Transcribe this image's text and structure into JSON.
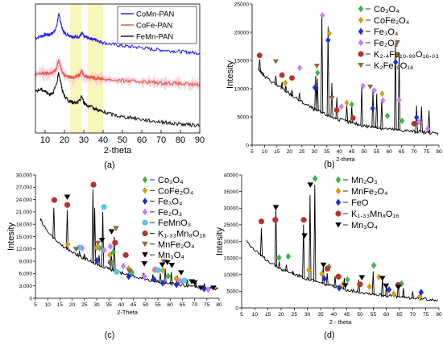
{
  "figure": {
    "panel_labels": [
      "(a)",
      "(b)",
      "(c)",
      "(d)"
    ]
  },
  "chart_data": [
    {
      "type": "line",
      "panel": "(a)",
      "xlabel": "2-theta",
      "ylabel": "",
      "xlim": [
        5,
        90
      ],
      "xticks": [
        10,
        20,
        30,
        40,
        50,
        60,
        70,
        80,
        90
      ],
      "grid": false,
      "legend_position": "top-right",
      "highlight_bands": [
        [
          23,
          29
        ],
        [
          32,
          40
        ]
      ],
      "series": [
        {
          "name": "CoMn-PAN",
          "color": "#1a1aff",
          "x": [
            5,
            8,
            10,
            12,
            14,
            16,
            17,
            18,
            19,
            20,
            22,
            24,
            26,
            28,
            29,
            30,
            32,
            34,
            36,
            38,
            40,
            45,
            50,
            55,
            60,
            65,
            70,
            75,
            80,
            85,
            90
          ],
          "y": [
            6.9,
            7.0,
            7.1,
            7.1,
            7.2,
            7.6,
            8.4,
            7.9,
            7.4,
            7.2,
            7.1,
            7.0,
            6.95,
            7.0,
            7.2,
            7.0,
            6.9,
            6.85,
            6.8,
            6.7,
            6.6,
            6.5,
            6.4,
            6.35,
            6.3,
            6.2,
            6.15,
            6.1,
            6.05,
            6.0,
            5.95
          ]
        },
        {
          "name": "CoFe-PAN",
          "color": "#e8543c",
          "x": [
            5,
            8,
            10,
            12,
            14,
            16,
            17,
            18,
            19,
            20,
            22,
            24,
            26,
            28,
            29,
            30,
            32,
            34,
            36,
            38,
            40,
            45,
            50,
            55,
            60,
            65,
            70,
            75,
            80,
            85,
            90
          ],
          "y": [
            4.6,
            4.7,
            4.7,
            4.7,
            4.75,
            5.0,
            5.6,
            5.1,
            4.8,
            4.6,
            4.5,
            4.45,
            4.5,
            4.6,
            4.9,
            4.6,
            4.5,
            4.45,
            4.4,
            4.4,
            4.35,
            4.3,
            4.25,
            4.2,
            4.2,
            4.15,
            4.1,
            4.1,
            4.05,
            4.0,
            4.0
          ]
        },
        {
          "name": "FeMn-PAN",
          "color": "#111111",
          "x": [
            5,
            8,
            10,
            12,
            14,
            16,
            17,
            18,
            19,
            20,
            22,
            24,
            26,
            28,
            29,
            30,
            32,
            34,
            36,
            38,
            40,
            45,
            50,
            55,
            60,
            65,
            70,
            75,
            80,
            85,
            90
          ],
          "y": [
            3.6,
            3.7,
            3.6,
            3.4,
            3.5,
            4.0,
            4.8,
            4.2,
            3.6,
            3.3,
            3.0,
            2.9,
            2.85,
            3.0,
            3.3,
            2.9,
            2.7,
            2.6,
            2.5,
            2.4,
            2.3,
            2.15,
            2.0,
            1.95,
            1.85,
            1.75,
            1.7,
            1.6,
            1.55,
            1.5,
            1.45
          ]
        }
      ]
    },
    {
      "type": "scatter",
      "panel": "(b)",
      "xlabel": "2-theta",
      "ylabel": "Intesity",
      "xlim": [
        5,
        80
      ],
      "ylim": [
        0,
        25000
      ],
      "xticks": [
        5,
        10,
        15,
        20,
        25,
        30,
        35,
        40,
        45,
        50,
        55,
        60,
        65,
        70,
        75,
        80
      ],
      "yticks": [
        0,
        5000,
        10000,
        15000,
        20000,
        25000
      ],
      "yticklabels": [
        "0",
        "5000",
        "10000",
        "15000",
        "20000",
        "25000"
      ],
      "grid": false,
      "legend_position": "top-right",
      "legend": [
        {
          "label": "Co₃O₄",
          "marker": "diamond",
          "color": "#3cb44b"
        },
        {
          "label": "CoFe₂O₄",
          "marker": "diamond",
          "color": "#d4a017"
        },
        {
          "label": "Fe₃O₄",
          "marker": "diamond",
          "color": "#1f2fd6"
        },
        {
          "label": "Fe₂O₃",
          "marker": "diamond",
          "color": "#c77dff"
        },
        {
          "label": "K₂.₄Fe₁₀.₉₉O₁₆.₀₃",
          "marker": "circle",
          "color": "#b5362d"
        },
        {
          "label": "K₂Fe₁₀O₁₆",
          "marker": "triangle",
          "color": "#8b6b3d"
        }
      ],
      "background": {
        "x": [
          7.5,
          10,
          15,
          20,
          25,
          30,
          35,
          40,
          45,
          50,
          55,
          60,
          65,
          70,
          75,
          80
        ],
        "y": [
          13500,
          12000,
          10500,
          9000,
          7500,
          6200,
          5200,
          4400,
          3800,
          3300,
          3000,
          2700,
          2500,
          2300,
          2100,
          1900
        ]
      },
      "peaks": {
        "x": [
          8,
          14.5,
          17,
          18.5,
          21,
          24,
          30.5,
          31.2,
          33,
          35.5,
          37,
          39,
          43,
          45,
          49,
          53.5,
          55,
          57,
          62.5,
          64,
          71,
          73,
          76
        ],
        "y": [
          15200,
          12300,
          11200,
          10500,
          9800,
          9300,
          12300,
          11800,
          23000,
          21000,
          11000,
          8500,
          7200,
          6900,
          10500,
          10000,
          9100,
          8000,
          18000,
          16500,
          7000,
          6800,
          6200
        ]
      },
      "markers": [
        {
          "phase": "Co₃O₄",
          "x": [
            31.3,
            45,
            59.3,
            65.2
          ],
          "y": [
            12800,
            7200,
            5200,
            4300
          ]
        },
        {
          "phase": "CoFe₂O₄",
          "x": [
            18.3,
            36,
            43,
            57.2,
            63
          ],
          "y": [
            11000,
            19800,
            7500,
            9100,
            16000
          ]
        },
        {
          "phase": "Fe₃O₄",
          "x": [
            30.2,
            35.5,
            53.4,
            62.6,
            71
          ],
          "y": [
            10200,
            18600,
            6500,
            14700,
            4900
          ]
        },
        {
          "phase": "Fe₂O₃",
          "x": [
            24.1,
            33.2,
            40.8,
            49.5,
            54,
            57.5,
            64,
            72,
            75.5
          ],
          "y": [
            13700,
            23000,
            6800,
            10500,
            9700,
            7900,
            8000,
            4100,
            2900
          ]
        },
        {
          "phase": "K₂.₄Fe₁₀.₉₉O₁₆.₀₃",
          "x": [
            8,
            17,
            21,
            39,
            45.5,
            70
          ],
          "y": [
            15900,
            12400,
            11900,
            6200,
            4800,
            3800
          ]
        },
        {
          "phase": "K₂Fe₁₀O₁₆",
          "x": [
            14.5,
            31,
            37,
            52.4,
            63.3
          ],
          "y": [
            14800,
            14000,
            8300,
            10300,
            18200
          ]
        }
      ]
    },
    {
      "type": "scatter",
      "panel": "(c)",
      "xlabel": "2-Theta",
      "ylabel": "Intesity",
      "xlim": [
        5,
        80
      ],
      "ylim": [
        0,
        30000
      ],
      "xticks": [
        5,
        10,
        15,
        20,
        25,
        30,
        35,
        40,
        45,
        50,
        55,
        60,
        65,
        70,
        75,
        80
      ],
      "yticks": [
        0,
        3000,
        6000,
        9000,
        12000,
        15000,
        18000,
        21000,
        24000,
        27000,
        30000
      ],
      "yticklabels": [
        "0",
        "3,000",
        "6,000",
        "9,000",
        "12,000",
        "15,000",
        "18,000",
        "21,000",
        "24,000",
        "27,000",
        "30,000"
      ],
      "grid": false,
      "legend_position": "top-right",
      "legend": [
        {
          "label": "Co₃O₄",
          "marker": "diamond",
          "color": "#3cb44b"
        },
        {
          "label": "CoFe₂O₄",
          "marker": "diamond",
          "color": "#d4a017"
        },
        {
          "label": "Fe₃O₄",
          "marker": "diamond",
          "color": "#1f2fd6"
        },
        {
          "label": "Fe₂O₃",
          "marker": "diamond",
          "color": "#c77dff"
        },
        {
          "label": "FeMnO₃",
          "marker": "circle",
          "color": "#5bc8e8"
        },
        {
          "label": "K₁.₃₃Mn₈O₁₆",
          "marker": "circle",
          "color": "#b5362d"
        },
        {
          "label": "MnFe₂O₄",
          "marker": "triangle",
          "color": "#8b6b3d"
        },
        {
          "label": "Mn₃O₄",
          "marker": "triangle",
          "color": "#000000"
        }
      ],
      "background": {
        "x": [
          7,
          10,
          15,
          20,
          25,
          30,
          35,
          40,
          45,
          50,
          55,
          60,
          65,
          70,
          75,
          80
        ],
        "y": [
          19000,
          16000,
          13000,
          11000,
          9500,
          8200,
          7000,
          6000,
          5200,
          4500,
          3900,
          3400,
          3000,
          2700,
          2400,
          2200
        ]
      },
      "peaks": {
        "x": [
          12.5,
          18,
          23,
          25,
          28.5,
          29.2,
          31,
          32.5,
          36,
          37.2,
          40.5,
          44,
          49,
          53,
          56,
          58,
          60.5,
          63,
          67,
          70.5,
          74,
          77
        ],
        "y": [
          22000,
          21500,
          11500,
          10800,
          26500,
          22000,
          10500,
          21000,
          11200,
          15000,
          6500,
          6000,
          6200,
          5800,
          6000,
          7200,
          6400,
          5500,
          4600,
          4300,
          3600,
          2500
        ]
      },
      "markers": [
        {
          "phase": "Co₃O₄",
          "x": [
            31.2,
            36.8,
            44.4,
            59.2,
            65.2
          ],
          "y": [
            12200,
            11200,
            6300,
            5400,
            4100
          ]
        },
        {
          "phase": "CoFe₂O₄",
          "x": [
            18.2,
            30,
            35.4,
            43,
            53.5,
            57,
            62.5
          ],
          "y": [
            13100,
            12300,
            10500,
            7200,
            6900,
            6800,
            4800
          ]
        },
        {
          "phase": "Fe₃O₄",
          "x": [
            30.1,
            35.5,
            43.1,
            53.4,
            57,
            62.6,
            73.9
          ],
          "y": [
            9200,
            8700,
            5300,
            4600,
            3700,
            3300,
            2300
          ]
        },
        {
          "phase": "Fe₂O₃",
          "x": [
            24.1,
            33.1,
            35.6,
            40.9,
            49.5,
            54.1,
            64,
            75.5
          ],
          "y": [
            12200,
            11700,
            12600,
            7800,
            5300,
            7000,
            4300,
            2100
          ]
        },
        {
          "phase": "FeMnO₃",
          "x": [
            23,
            33,
            38.2,
            55.2,
            65.8
          ],
          "y": [
            12300,
            22200,
            6400,
            6800,
            4300
          ]
        },
        {
          "phase": "K₁.₃₃Mn₈O₁₆",
          "x": [
            12.7,
            18,
            28.7,
            37.5,
            41.9
          ],
          "y": [
            23900,
            22700,
            27600,
            13500,
            10500
          ]
        },
        {
          "phase": "MnFe₂O₄",
          "x": [
            21.6,
            30.5,
            35.7,
            37.9,
            43.3,
            57.5
          ],
          "y": [
            11900,
            13400,
            8600,
            17000,
            6600,
            8900
          ]
        },
        {
          "phase": "Mn₃O₄",
          "x": [
            18,
            32.2,
            36.1,
            49.5,
            56.8,
            58.9,
            60.7,
            64.5,
            68.9,
            70,
            72.6,
            77.7
          ],
          "y": [
            24600,
            14100,
            16200,
            8400,
            8100,
            8700,
            8000,
            6200,
            4000,
            3800,
            2500,
            2500
          ]
        }
      ]
    },
    {
      "type": "scatter",
      "panel": "(d)",
      "xlabel": "2 - theta",
      "ylabel": "Intesity",
      "xlim": [
        5,
        80
      ],
      "ylim": [
        0,
        40000
      ],
      "xticks": [
        5,
        10,
        15,
        20,
        25,
        30,
        35,
        40,
        45,
        50,
        55,
        60,
        65,
        70,
        75,
        80
      ],
      "yticks": [
        0,
        5000,
        10000,
        15000,
        20000,
        25000,
        30000,
        35000,
        40000
      ],
      "yticklabels": [
        "0",
        "5000",
        "10000",
        "15000",
        "20000",
        "25000",
        "30000",
        "35000",
        "40000"
      ],
      "grid": false,
      "legend_position": "top-right",
      "legend": [
        {
          "label": "Mn₂O₃",
          "marker": "diamond",
          "color": "#3cb44b"
        },
        {
          "label": "MnFe₂O₄",
          "marker": "diamond",
          "color": "#d4a017"
        },
        {
          "label": "FeO",
          "marker": "diamond",
          "color": "#1f2fd6"
        },
        {
          "label": "K₁.₃₃Mn₈O₁₆",
          "marker": "circle",
          "color": "#b5362d"
        },
        {
          "label": "Mn₃O₄",
          "marker": "triangle",
          "color": "#000000"
        }
      ],
      "background": {
        "x": [
          7,
          10,
          15,
          20,
          25,
          30,
          35,
          40,
          45,
          50,
          55,
          60,
          65,
          70,
          75,
          80
        ],
        "y": [
          20000,
          17000,
          14000,
          11500,
          10000,
          8500,
          7300,
          6200,
          5300,
          4600,
          4000,
          3500,
          3100,
          2800,
          2500,
          2300
        ]
      },
      "peaks": {
        "x": [
          12.5,
          18,
          19.3,
          22,
          24.5,
          28.5,
          31,
          32.8,
          36,
          37.5,
          40.5,
          44,
          49.5,
          55,
          58.5,
          60,
          64.5,
          66.5,
          70,
          73
        ],
        "y": [
          24000,
          30000,
          14000,
          13000,
          11000,
          25000,
          34000,
          37000,
          12500,
          10500,
          9500,
          9000,
          8500,
          11000,
          9000,
          6500,
          7500,
          6000,
          5000,
          3800
        ]
      },
      "markers": [
        {
          "phase": "Mn₂O₃",
          "x": [
            19.2,
            22.7,
            32.9,
            38.2,
            45.2,
            55.2,
            65.8
          ],
          "y": [
            15100,
            15500,
            38900,
            12400,
            8500,
            12800,
            7300
          ]
        },
        {
          "phase": "MnFe₂O₄",
          "x": [
            30.5,
            35.5,
            43.4,
            53.6,
            57.2,
            62.8,
            72.8
          ],
          "y": [
            11400,
            10200,
            7000,
            6400,
            9300,
            4200,
            3500
          ]
        },
        {
          "phase": "FeO",
          "x": [
            36.4,
            42.1,
            61,
            73.2
          ],
          "y": [
            8800,
            6000,
            5500,
            4700
          ]
        },
        {
          "phase": "K₁.₃₃Mn₈O₁₆",
          "x": [
            12.5,
            17.8,
            28.6,
            37.6,
            41.8,
            50,
            64.5
          ],
          "y": [
            26000,
            26500,
            26500,
            11800,
            9400,
            7100,
            6900
          ]
        },
        {
          "phase": "Mn₃O₄",
          "x": [
            18,
            28.9,
            31.1,
            36.1,
            44.4,
            50.7,
            58.5,
            59.9,
            64.6
          ],
          "y": [
            30200,
            21700,
            37000,
            12900,
            6700,
            9100,
            8900,
            6600,
            6200
          ]
        }
      ]
    }
  ]
}
